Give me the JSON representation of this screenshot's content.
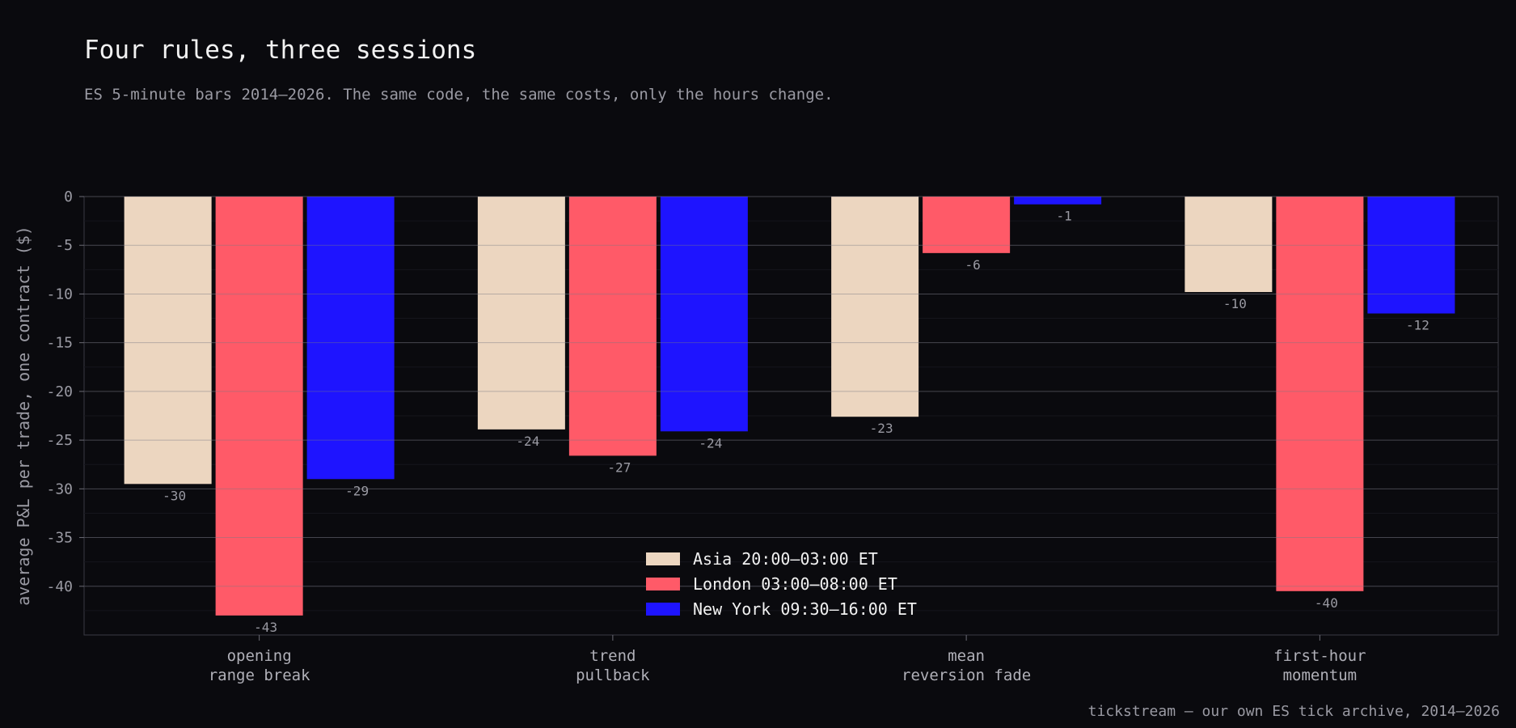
{
  "header": {
    "title": "Four rules, three sessions",
    "subtitle": "ES 5-minute bars 2014–2026. The same code, the same costs, only the hours change."
  },
  "footer": {
    "source": "tickstream — our own ES tick archive, 2014–2026"
  },
  "chart_data": {
    "type": "bar",
    "title": "Four rules, three sessions",
    "ylabel": "average P&L per trade, one contract ($)",
    "xlabel": "",
    "ylim": [
      -45,
      0
    ],
    "yticks": [
      0,
      -5,
      -10,
      -15,
      -20,
      -25,
      -30,
      -35,
      -40
    ],
    "grid": true,
    "legend_position": "bottom-center",
    "categories": [
      [
        "opening",
        "range break"
      ],
      [
        "trend",
        "pullback"
      ],
      [
        "mean",
        "reversion fade"
      ],
      [
        "first-hour",
        "momentum"
      ]
    ],
    "series": [
      {
        "name": "Asia 20:00–03:00 ET",
        "color": "#ecd6c0",
        "values": [
          -29.5,
          -23.9,
          -22.6,
          -9.8
        ],
        "labels": [
          "-30",
          "-24",
          "-23",
          "-10"
        ]
      },
      {
        "name": "London 03:00–08:00 ET",
        "color": "#ff5a68",
        "values": [
          -43.0,
          -26.6,
          -5.8,
          -40.5
        ],
        "labels": [
          "-43",
          "-27",
          "-6",
          "-40"
        ]
      },
      {
        "name": "New York 09:30–16:00 ET",
        "color": "#1e14ff",
        "values": [
          -29.0,
          -24.1,
          -0.8,
          -12.0
        ],
        "labels": [
          "-29",
          "-24",
          "-1",
          "-12"
        ]
      }
    ]
  }
}
